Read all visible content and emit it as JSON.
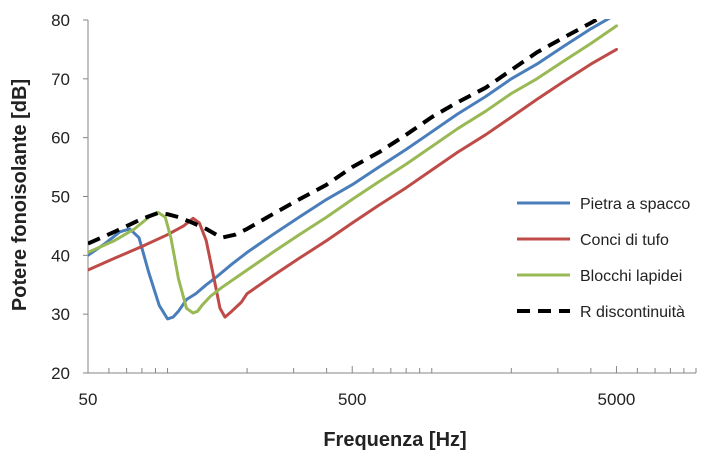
{
  "chart_data": {
    "type": "line",
    "title": "",
    "xlabel": "Frequenza  [Hz]",
    "ylabel": "Potere fonoisolante  [dB]",
    "xscale": "log",
    "xlim": [
      50,
      10000
    ],
    "ylim": [
      20,
      80
    ],
    "xticks": [
      50,
      500,
      5000
    ],
    "xtick_labels": [
      "50",
      "500",
      "5000"
    ],
    "yticks": [
      20,
      30,
      40,
      50,
      60,
      70,
      80
    ],
    "ytick_labels": [
      "20",
      "30",
      "40",
      "50",
      "60",
      "70",
      "80"
    ],
    "grid": false,
    "legend": "right",
    "series": [
      {
        "name": "Pietra a spacco",
        "color": "#4a7ebb",
        "style": "solid",
        "x": [
          50,
          58,
          66,
          72,
          78,
          85,
          93,
          100,
          105,
          110,
          118,
          128,
          140,
          155,
          175,
          200,
          250,
          315,
          400,
          500,
          630,
          800,
          1000,
          1250,
          1600,
          2000,
          2500,
          3150,
          4000,
          5000
        ],
        "y": [
          40,
          42,
          44,
          44.5,
          43,
          37,
          31.5,
          29.2,
          29.5,
          30.5,
          32.5,
          33.5,
          35,
          36.5,
          38.5,
          40.5,
          43.5,
          46.5,
          49.5,
          52,
          55,
          58,
          61,
          64,
          67,
          70,
          72.5,
          75.5,
          78.5,
          81
        ]
      },
      {
        "name": "Conci di tufo",
        "color": "#be4b48",
        "style": "solid",
        "x": [
          50,
          63,
          80,
          100,
          115,
          125,
          132,
          140,
          150,
          158,
          165,
          175,
          190,
          200,
          250,
          315,
          400,
          500,
          630,
          800,
          1000,
          1250,
          1600,
          2000,
          2500,
          3150,
          4000,
          5000
        ],
        "y": [
          37.5,
          39.5,
          41.5,
          43.5,
          45,
          46.3,
          45.5,
          42.5,
          36,
          31,
          29.5,
          30.5,
          32,
          33.5,
          36.5,
          39.5,
          42.5,
          45.5,
          48.5,
          51.5,
          54.5,
          57.5,
          60.5,
          63.5,
          66.5,
          69.5,
          72.5,
          75
        ]
      },
      {
        "name": "Blocchi lapidei",
        "color": "#98b954",
        "style": "solid",
        "x": [
          50,
          63,
          75,
          85,
          92,
          98,
          103,
          110,
          118,
          125,
          130,
          135,
          145,
          160,
          200,
          250,
          315,
          400,
          500,
          630,
          800,
          1000,
          1250,
          1600,
          2000,
          2500,
          3150,
          4000,
          5000
        ],
        "y": [
          40.5,
          42.5,
          44.5,
          46.5,
          47.3,
          46.5,
          43,
          36,
          31,
          30.2,
          30.5,
          31.5,
          33,
          34.5,
          37.5,
          40.5,
          43.5,
          46.5,
          49.5,
          52.5,
          55.5,
          58.5,
          61.5,
          64.5,
          67.5,
          70,
          73,
          76,
          79
        ]
      },
      {
        "name": "R discontinuità",
        "color": "#000000",
        "style": "dashed",
        "x": [
          50,
          63,
          80,
          92,
          100,
          110,
          125,
          140,
          160,
          180,
          200,
          250,
          315,
          400,
          500,
          630,
          800,
          1000,
          1250,
          1600,
          2000,
          2500,
          3150,
          4000,
          5000
        ],
        "y": [
          42,
          44,
          46.2,
          47.2,
          47,
          46.5,
          45.5,
          44.5,
          43,
          43.5,
          44.5,
          47,
          49.5,
          52,
          55,
          57.5,
          60.5,
          63.5,
          66,
          68.5,
          71.5,
          74.5,
          77,
          79.5,
          82
        ]
      }
    ]
  }
}
